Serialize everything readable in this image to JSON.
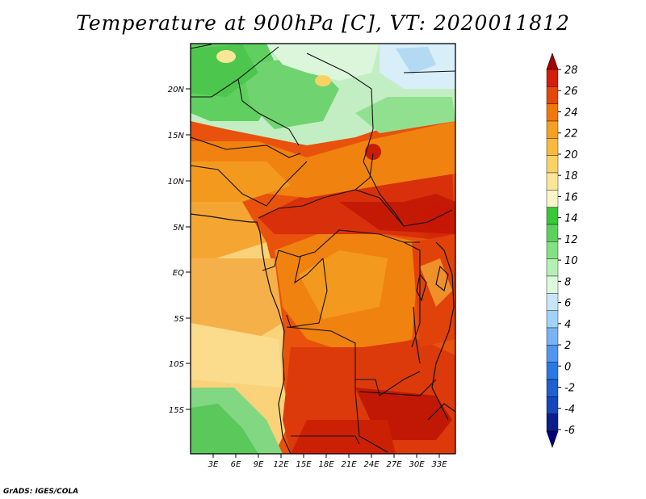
{
  "title": "Temperature at 900hPa [C], VT: 2020011812",
  "footer": "GrADS: IGES/COLA",
  "map": {
    "lat_ticks": [
      "20N",
      "15N",
      "10N",
      "5N",
      "EQ",
      "5S",
      "10S",
      "15S"
    ],
    "lon_ticks": [
      "3E",
      "6E",
      "9E",
      "12E",
      "15E",
      "18E",
      "21E",
      "24E",
      "27E",
      "30E",
      "33E"
    ]
  },
  "colorbar": {
    "labels": [
      "28",
      "26",
      "24",
      "22",
      "20",
      "18",
      "16",
      "14",
      "12",
      "10",
      "8",
      "6",
      "4",
      "2",
      "0",
      "-2",
      "-4",
      "-6"
    ],
    "colors": [
      "#a50000",
      "#d21e0a",
      "#e6460a",
      "#f0780a",
      "#f5a01e",
      "#fab93c",
      "#fad264",
      "#fae696",
      "#faf5c8",
      "#37c837",
      "#5ad25a",
      "#82e182",
      "#b4f0b4",
      "#dcfadc",
      "#c8e6fa",
      "#a0d2fa",
      "#78b4f5",
      "#5096f0",
      "#2878e6",
      "#1e5fd2",
      "#1446be",
      "#0a1e8c",
      "#00007d"
    ]
  }
}
